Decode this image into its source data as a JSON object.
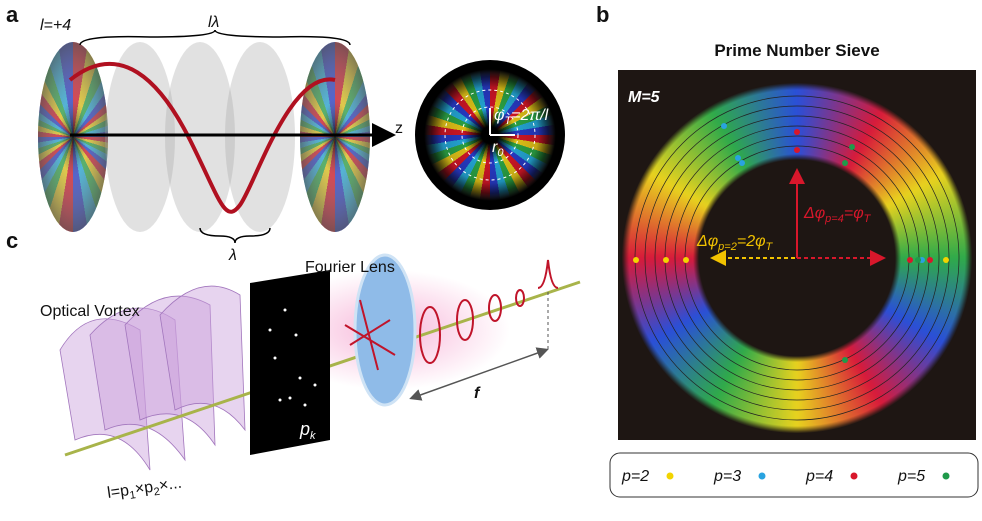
{
  "panel_labels": {
    "a": "a",
    "b": "b",
    "c": "c"
  },
  "panel_a": {
    "charge": "l=+4",
    "period_length": "lλ",
    "axis": "z",
    "wavelength": "λ",
    "phase_label": [
      "φ",
      "T",
      "=2π/l"
    ],
    "radius_label": [
      "r",
      "0"
    ]
  },
  "panel_b": {
    "title": "Prime Number Sieve",
    "modulus": "M=5",
    "delta_p4": [
      "Δφ",
      "p=4",
      "=φ",
      "T"
    ],
    "delta_p2": [
      "Δφ",
      "p=2",
      "=2φ",
      "T"
    ],
    "legend": [
      {
        "label": "p=2",
        "color": "#f2d400"
      },
      {
        "label": "p=3",
        "color": "#29a3e0"
      },
      {
        "label": "p=4",
        "color": "#d8172b"
      },
      {
        "label": "p=5",
        "color": "#1f9a4a"
      }
    ]
  },
  "panel_c": {
    "vortex": "Optical Vortex",
    "lens": "Fourier Lens",
    "focal": "f",
    "mask": [
      "p",
      "k"
    ],
    "charge": [
      "l=p",
      "1",
      "×p",
      "2",
      "×..."
    ]
  }
}
